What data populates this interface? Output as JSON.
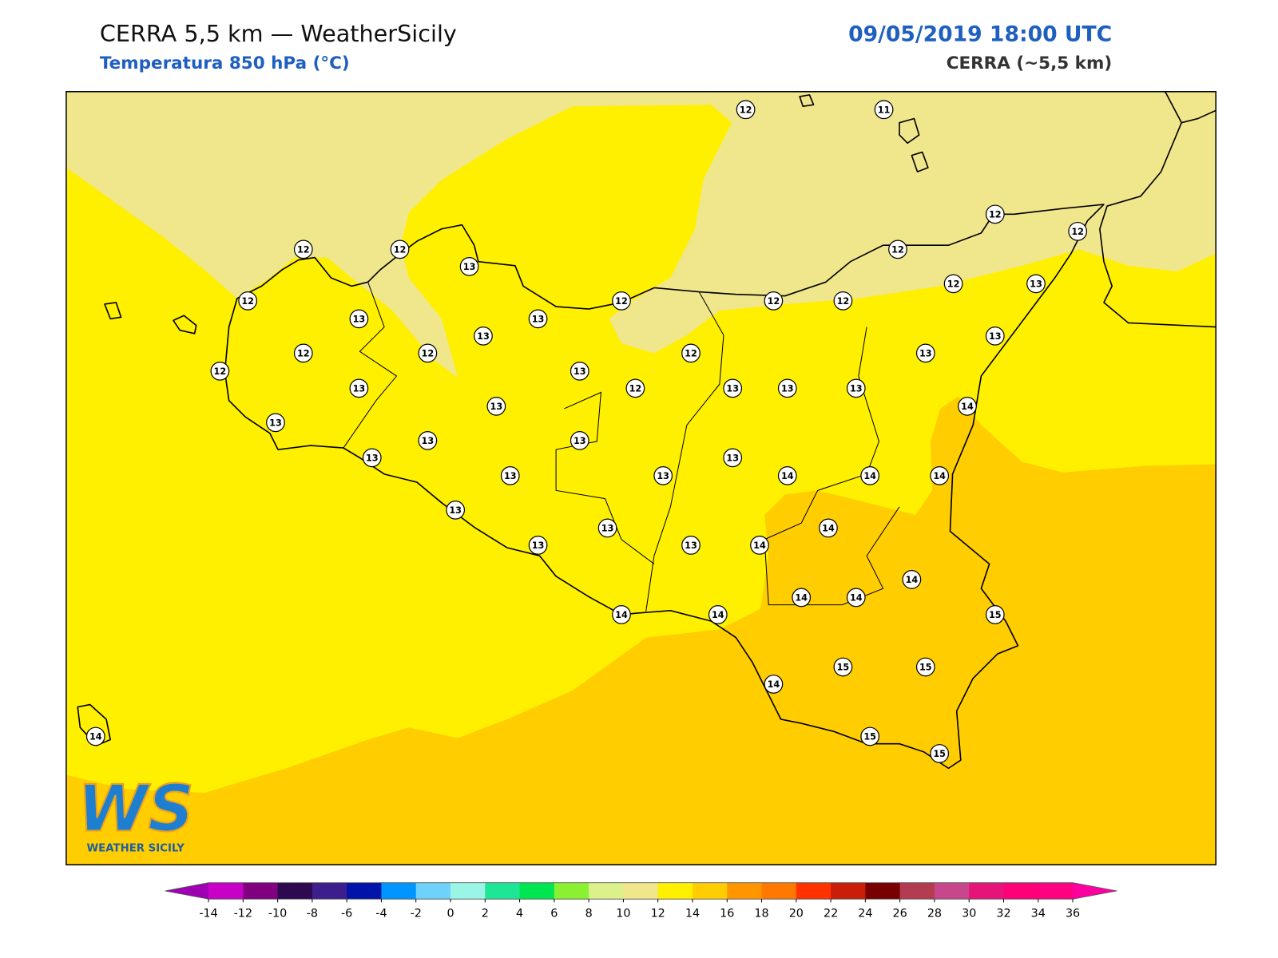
{
  "header": {
    "title": "CERRA 5,5 km — WeatherSicily",
    "subtitle": "Temperatura 850 hPa (°C)",
    "datetime": "09/05/2019 18:00 UTC",
    "model": "CERRA (~5,5 km)"
  },
  "stations": [
    12,
    11,
    12,
    12,
    12,
    12,
    13,
    12,
    12,
    13,
    12,
    12,
    12,
    12,
    13,
    13,
    13,
    13,
    12,
    12,
    12,
    13,
    12,
    13,
    13,
    12,
    13,
    13,
    13,
    13,
    14,
    13,
    13,
    13,
    13,
    13,
    13,
    13,
    14,
    14,
    14,
    13,
    13,
    14,
    13,
    13,
    14,
    14,
    14,
    14,
    15,
    14,
    14,
    14,
    15,
    15,
    15,
    15,
    14
  ],
  "colorbar": {
    "ticks": [
      -14,
      -12,
      -10,
      -8,
      -6,
      -4,
      -2,
      0,
      2,
      4,
      6,
      8,
      10,
      12,
      14,
      16,
      18,
      20,
      22,
      24,
      26,
      28,
      30,
      32,
      34,
      36
    ],
    "colors": [
      "#c800c8",
      "#800080",
      "#2d0a50",
      "#3c1e8c",
      "#0014aa",
      "#0096ff",
      "#6ed2fa",
      "#9bf5e6",
      "#1ee696",
      "#00e650",
      "#8cf032",
      "#dcf08c",
      "#f0e68c",
      "#fff000",
      "#ffcd00",
      "#ff9600",
      "#ff7800",
      "#ff3200",
      "#c81e0a",
      "#780000",
      "#b43c50",
      "#c8468c",
      "#e61478",
      "#ff0078",
      "#ff0080"
    ],
    "extend_colors": [
      "#a000b4",
      "#ff00a0"
    ]
  },
  "logo": {
    "mark": "WS",
    "name": "WEATHER SICILY"
  }
}
